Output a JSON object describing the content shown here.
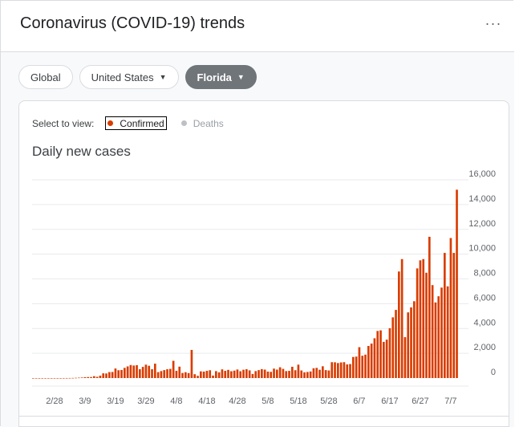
{
  "header": {
    "title": "Coronavirus (COVID-19) trends",
    "more_icon": "more-horiz-icon"
  },
  "filters": [
    {
      "label": "Global",
      "has_caret": false,
      "selected": false
    },
    {
      "label": "United States",
      "has_caret": true,
      "selected": false
    },
    {
      "label": "Florida",
      "has_caret": true,
      "selected": true
    }
  ],
  "view_selector": {
    "label": "Select to view:",
    "options": [
      {
        "label": "Confirmed",
        "active": true,
        "color": "#d93c00"
      },
      {
        "label": "Deaths",
        "active": false,
        "color": "#bdc1c6"
      }
    ]
  },
  "chart": {
    "title": "Daily new cases"
  },
  "colors": {
    "bar": "#d93c00",
    "grid": "#e8eaed",
    "axis_text": "#5f6368"
  },
  "chart_data": {
    "type": "bar",
    "title": "Daily new cases",
    "x_tick_labels": [
      "2/28",
      "3/9",
      "3/19",
      "3/29",
      "4/8",
      "4/18",
      "4/28",
      "5/8",
      "5/18",
      "5/28",
      "6/7",
      "6/17",
      "6/27",
      "7/7"
    ],
    "y_ticks": [
      0,
      2000,
      4000,
      6000,
      8000,
      10000,
      12000,
      14000,
      16000
    ],
    "ylim": [
      0,
      16000
    ],
    "grid": true,
    "series": [
      {
        "values": [
          0,
          0,
          0,
          0,
          0,
          0,
          0,
          0,
          0,
          0,
          2,
          4,
          5,
          10,
          20,
          30,
          45,
          70,
          80,
          80,
          150,
          100,
          190,
          380,
          370,
          480,
          490,
          770,
          630,
          650,
          820,
          940,
          1050,
          1010,
          1040,
          710,
          900,
          1080,
          990,
          710,
          1160,
          480,
          560,
          640,
          710,
          740,
          1390,
          580,
          920,
          410,
          470,
          400,
          2270,
          310,
          180,
          540,
          520,
          580,
          630,
          200,
          560,
          460,
          700,
          580,
          660,
          550,
          600,
          690,
          550,
          670,
          710,
          620,
          330,
          560,
          640,
          720,
          680,
          520,
          500,
          760,
          680,
          870,
          740,
          560,
          580,
          910,
          630,
          1080,
          610,
          460,
          490,
          530,
          790,
          820,
          670,
          950,
          640,
          610,
          1280,
          1270,
          1210,
          1260,
          1280,
          1100,
          1130,
          1700,
          1730,
          2490,
          1800,
          1890,
          2590,
          2780,
          3210,
          3800,
          3850,
          2920,
          3100,
          4020,
          4900,
          5500,
          8600,
          9600,
          3300,
          5300,
          5700,
          6200,
          8850,
          9500,
          9600,
          8500,
          11400,
          7500,
          6100,
          6600,
          7300,
          10100,
          7400,
          11300,
          10100,
          15200
        ]
      }
    ]
  }
}
